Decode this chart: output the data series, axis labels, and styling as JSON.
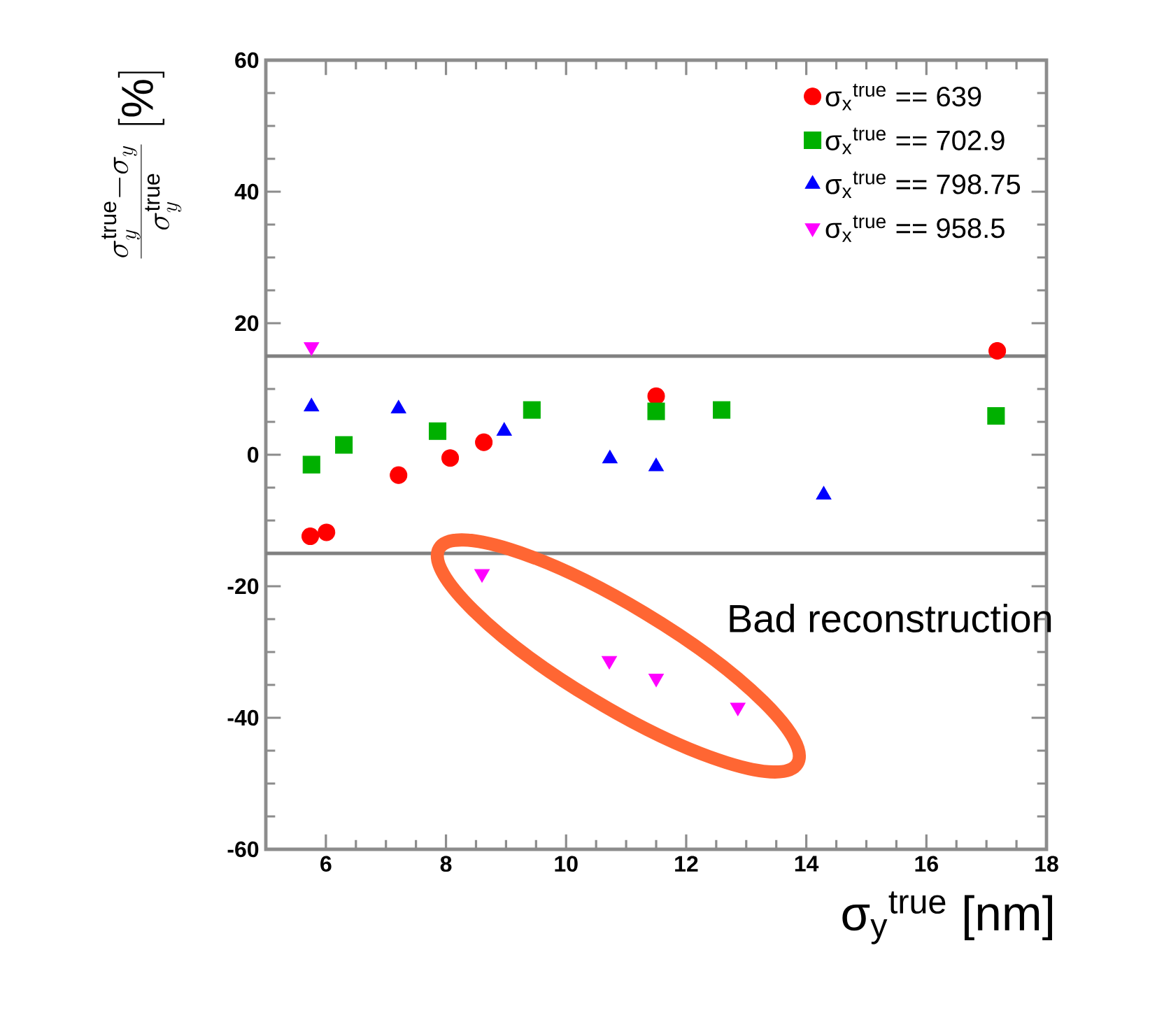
{
  "chart_data": {
    "type": "scatter",
    "xlabel": "σ$_{y}$$^{true}$ [nm]",
    "ylabel": "\\frac{\\sigma_y^{\\mathrm{true}}-\\sigma_y}{\\sigma_y^{\\mathrm{true}}}\\ [\\%]",
    "xlim": [
      5,
      18
    ],
    "ylim": [
      -60,
      60
    ],
    "xticks": [
      6,
      8,
      10,
      12,
      14,
      16,
      18
    ],
    "yticks": [
      -60,
      -40,
      -20,
      0,
      20,
      40,
      60
    ],
    "legend": "top right",
    "grid": false,
    "ref_lines": [
      {
        "axis": "y",
        "value": 15,
        "color": "#808080"
      },
      {
        "axis": "y",
        "value": -15,
        "color": "#808080"
      }
    ],
    "annotations": [
      "Bad reconstruction"
    ],
    "series": [
      {
        "name": "σ$_{x}$$^{true}$ == 639",
        "color": "#ff0000",
        "marker": "circle",
        "x": [
          5.74,
          6.01,
          7.21,
          8.07,
          8.63,
          11.5,
          17.18
        ],
        "values": [
          -12.4,
          -11.8,
          -3.1,
          -0.5,
          1.9,
          8.9,
          15.8
        ]
      },
      {
        "name": "σ$_{x}$$^{true}$ == 702.9",
        "color": "#00b000",
        "marker": "square",
        "x": [
          5.76,
          6.3,
          7.86,
          9.43,
          11.5,
          12.59,
          17.16
        ],
        "values": [
          -1.5,
          1.5,
          3.6,
          6.8,
          6.6,
          6.8,
          5.9
        ]
      },
      {
        "name": "σ$_{x}$$^{true}$ == 798.75",
        "color": "#0000ff",
        "marker": "triangle",
        "x": [
          5.76,
          7.21,
          8.97,
          10.73,
          11.5,
          14.29
        ],
        "values": [
          7.3,
          7.0,
          3.6,
          -0.6,
          -1.8,
          -6.1
        ]
      },
      {
        "name": "σ$_{x}$$^{true}$ == 958.5",
        "color": "#ff00ff",
        "marker": "triangle down",
        "x": [
          5.76,
          8.6,
          10.72,
          11.5,
          12.86
        ],
        "values": [
          16.4,
          -18.1,
          -31.3,
          -34.0,
          -38.4
        ]
      }
    ]
  }
}
